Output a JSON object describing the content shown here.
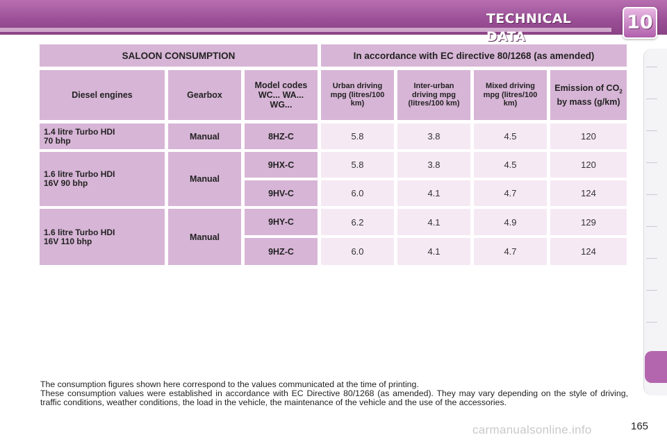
{
  "header": {
    "title": "TECHNICAL DATA",
    "chapter": "10"
  },
  "table": {
    "top_left": "SALOON CONSUMPTION",
    "top_right": "In accordance with EC directive 80/1268 (as amended)",
    "columns": {
      "engine": "Diesel engines",
      "gearbox": "Gearbox",
      "model_codes": "Model codes WC... WA... WG...",
      "urban": "Urban driving mpg (litres/100 km)",
      "inter_urban": "Inter-urban driving mpg (litres/100 km)",
      "mixed": "Mixed driving mpg (litres/100 km)",
      "emission_pre": "Emission of CO",
      "emission_sub": "2",
      "emission_post": " by mass (g/km)"
    },
    "engines": [
      {
        "line1": "1.4 litre Turbo HDI",
        "line2": "70 bhp",
        "gearbox": "Manual"
      },
      {
        "line1": "1.6 litre Turbo HDI",
        "line2": "16V 90 bhp",
        "gearbox": "Manual"
      },
      {
        "line1": "1.6 litre Turbo HDI",
        "line2": "16V 110 bhp",
        "gearbox": "Manual"
      }
    ],
    "rows": [
      {
        "code": "8HZ-C",
        "urban": "5.8",
        "inter_urban": "3.8",
        "mixed": "4.5",
        "co2": "120"
      },
      {
        "code": "9HX-C",
        "urban": "5.8",
        "inter_urban": "3.8",
        "mixed": "4.5",
        "co2": "120"
      },
      {
        "code": "9HV-C",
        "urban": "6.0",
        "inter_urban": "4.1",
        "mixed": "4.7",
        "co2": "124"
      },
      {
        "code": "9HY-C",
        "urban": "6.2",
        "inter_urban": "4.1",
        "mixed": "4.9",
        "co2": "129"
      },
      {
        "code": "9HZ-C",
        "urban": "6.0",
        "inter_urban": "4.1",
        "mixed": "4.7",
        "co2": "124"
      }
    ]
  },
  "note": {
    "line1": "The consumption figures shown here correspond to the values communicated at the time of printing.",
    "line2": "These consumption values were established in accordance with EC Directive 80/1268 (as amended). They may vary depending on the style of driving, traffic conditions, weather conditions, the load in the vehicle, the maintenance of the vehicle and the use of the accessories."
  },
  "page_number": "165",
  "watermark": "carmanualsonline.info",
  "colors": {
    "header_purple": "#9a4e95",
    "cell_header": "#d7b5d6",
    "cell_value": "#f5e9f4"
  }
}
